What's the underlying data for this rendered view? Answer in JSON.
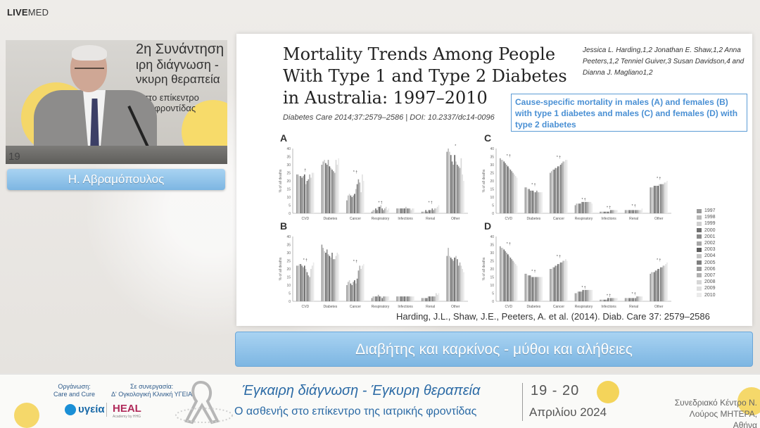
{
  "brand": {
    "live": "LIVE",
    "med": "MED"
  },
  "speaker": {
    "name": "Η. Αβραμόπουλος",
    "backdrop_lines": [
      "2η Συνάντηση",
      "ιρη διάγνωση -",
      "νκυρη θεραπεία",
      "ς στο επίκεντρο",
      "ικής φροντίδας"
    ],
    "corner_number": "19"
  },
  "slide": {
    "title": "Mortality Trends Among People With Type 1 and Type 2 Diabetes in Australia: 1997–2010",
    "citation": "Diabetes Care 2014;37:2579–2586 | DOI: 10.2337/dc14-0096",
    "authors": "Jessica L. Harding,1,2 Jonathan E. Shaw,1,2 Anna Peeters,1,2 Tenniel Guiver,3 Susan Davidson,4 and Dianna J. Magliano1,2",
    "callout": "Cause-specific mortality in males (A) and females (B) with type 1 diabetes and males (C) and females (D) with type 2 diabetes",
    "reference": "Harding, J.L., Shaw, J.E., Peeters, A. et al. (2014). Diab. Care 37: 2579–2586",
    "legend_years": [
      "1997",
      "1998",
      "1999",
      "2000",
      "2001",
      "2002",
      "2003",
      "2004",
      "2005",
      "2006",
      "2007",
      "2008",
      "2009",
      "2010"
    ],
    "legend_colors": [
      "#9a9a9a",
      "#b9b9b9",
      "#cfcfcf",
      "#6f6f6f",
      "#8a8a8a",
      "#a8a8a8",
      "#5d5d5d",
      "#c4c4c4",
      "#7e7e7e",
      "#999999",
      "#b1b1b1",
      "#d6d6d6",
      "#e0e0e0",
      "#ebebeb"
    ]
  },
  "chart_data": [
    {
      "type": "bar",
      "panel": "A",
      "ylabel": "% of all deaths",
      "ylim": [
        0,
        40
      ],
      "yticks": [
        "0",
        "5",
        "10",
        "15",
        "20",
        "25",
        "30",
        "35",
        "40"
      ],
      "categories": [
        "CVD",
        "Diabetes",
        "Cancer",
        "Respiratory",
        "Infections",
        "Renal",
        "Other"
      ],
      "markers": [
        "†",
        "",
        "* †",
        "* †",
        "",
        "* †",
        "*"
      ],
      "values": [
        [
          24,
          24,
          23,
          23,
          22,
          23,
          24,
          18,
          20,
          21,
          24,
          22,
          25,
          25
        ],
        [
          30,
          32,
          33,
          31,
          30,
          33,
          29,
          28,
          27,
          26,
          25,
          33,
          30,
          34
        ],
        [
          8,
          11,
          12,
          11,
          10,
          11,
          12,
          15,
          18,
          21,
          19,
          13,
          24,
          20
        ],
        [
          1,
          2,
          2,
          3,
          2,
          4,
          4,
          5,
          3,
          2,
          3,
          4,
          2,
          3
        ],
        [
          3,
          3,
          3,
          3,
          3,
          3,
          3,
          4,
          3,
          3,
          3,
          2,
          3,
          3
        ],
        [
          1,
          1,
          1,
          2,
          1,
          2,
          2,
          2,
          3,
          2,
          3,
          3,
          4,
          5
        ],
        [
          38,
          40,
          38,
          36,
          32,
          30,
          36,
          32,
          30,
          29,
          28,
          34,
          24,
          20
        ]
      ]
    },
    {
      "type": "bar",
      "panel": "B",
      "ylabel": "% of all deaths",
      "ylim": [
        0,
        40
      ],
      "yticks": [
        "0",
        "5",
        "10",
        "15",
        "20",
        "25",
        "30",
        "35",
        "40"
      ],
      "categories": [
        "CVD",
        "Diabetes",
        "Cancer",
        "Respiratory",
        "Infections",
        "Renal",
        "Other"
      ],
      "markers": [
        "* †",
        "",
        "* †",
        "",
        "",
        "",
        ""
      ],
      "values": [
        [
          22,
          22,
          23,
          23,
          22,
          21,
          22,
          20,
          18,
          16,
          15,
          20,
          22,
          24
        ],
        [
          35,
          33,
          31,
          30,
          32,
          29,
          28,
          27,
          30,
          26,
          26,
          28,
          30,
          29
        ],
        [
          10,
          12,
          13,
          11,
          10,
          12,
          13,
          11,
          14,
          19,
          22,
          20,
          22,
          23
        ],
        [
          2,
          3,
          3,
          3,
          3,
          4,
          3,
          3,
          2,
          3,
          3,
          3,
          3,
          3
        ],
        [
          3,
          3,
          3,
          3,
          3,
          3,
          3,
          3,
          3,
          3,
          3,
          3,
          3,
          3
        ],
        [
          2,
          2,
          2,
          2,
          2,
          3,
          3,
          3,
          3,
          3,
          3,
          5,
          4,
          5
        ],
        [
          28,
          33,
          28,
          27,
          26,
          25,
          27,
          28,
          26,
          22,
          24,
          22,
          20,
          18
        ]
      ]
    },
    {
      "type": "bar",
      "panel": "C",
      "ylabel": "% of all deaths",
      "ylim": [
        0,
        40
      ],
      "yticks": [
        "0",
        "5",
        "10",
        "15",
        "20",
        "25",
        "30",
        "35",
        "40"
      ],
      "categories": [
        "CVD",
        "Diabetes",
        "Cancer",
        "Respiratory",
        "Infections",
        "Renal",
        "Other"
      ],
      "markers": [
        "* †",
        "* †",
        "* †",
        "* †",
        "* †",
        "* †",
        "* †"
      ],
      "values": [
        [
          34,
          33,
          33,
          32,
          31,
          30,
          29,
          28,
          27,
          26,
          25,
          24,
          23,
          22
        ],
        [
          16,
          16,
          15,
          15,
          14,
          14,
          14,
          13,
          13,
          14,
          13,
          13,
          13,
          13
        ],
        [
          25,
          26,
          27,
          27,
          28,
          28,
          29,
          29,
          30,
          31,
          32,
          32,
          33,
          33
        ],
        [
          5,
          6,
          6,
          6,
          6,
          7,
          7,
          7,
          7,
          7,
          7,
          7,
          7,
          6
        ],
        [
          1,
          1,
          1,
          1,
          1,
          1,
          1,
          1,
          2,
          2,
          2,
          2,
          2,
          2
        ],
        [
          2,
          2,
          2,
          2,
          2,
          2,
          2,
          2,
          2,
          2,
          2,
          2,
          2,
          3
        ],
        [
          16,
          16,
          16,
          17,
          17,
          17,
          17,
          18,
          18,
          18,
          18,
          19,
          19,
          20
        ]
      ]
    },
    {
      "type": "bar",
      "panel": "D",
      "ylabel": "% of all deaths",
      "ylim": [
        0,
        40
      ],
      "yticks": [
        "0",
        "5",
        "10",
        "15",
        "20",
        "25",
        "30",
        "35",
        "40"
      ],
      "categories": [
        "CVD",
        "Diabetes",
        "Cancer",
        "Respiratory",
        "Infections",
        "Renal",
        "Other"
      ],
      "markers": [
        "* †",
        "* †",
        "* †",
        "* †",
        "* †",
        "* †",
        "* †"
      ],
      "values": [
        [
          34,
          33,
          33,
          32,
          31,
          30,
          29,
          28,
          27,
          26,
          25,
          24,
          23,
          22
        ],
        [
          17,
          17,
          16,
          16,
          16,
          15,
          15,
          15,
          15,
          15,
          15,
          15,
          15,
          15
        ],
        [
          20,
          20,
          21,
          21,
          22,
          22,
          23,
          23,
          24,
          24,
          25,
          25,
          26,
          25
        ],
        [
          5,
          5,
          6,
          6,
          6,
          6,
          7,
          7,
          7,
          7,
          7,
          7,
          7,
          7
        ],
        [
          1,
          1,
          1,
          1,
          1,
          1,
          2,
          2,
          2,
          2,
          2,
          2,
          2,
          2
        ],
        [
          2,
          2,
          2,
          2,
          2,
          2,
          2,
          2,
          2,
          3,
          3,
          3,
          3,
          3
        ],
        [
          17,
          18,
          18,
          18,
          19,
          19,
          20,
          20,
          21,
          21,
          22,
          22,
          23,
          24
        ]
      ]
    }
  ],
  "subtitle": "Διαβήτης και καρκίνος - μύθοι και αλήθειες",
  "footer": {
    "org_label": "Οργάνωση:\nCare and Cure",
    "collab_label": "Σε συνεργασία:\nΔ' Ογκολογική Κλινική ΥΓΕΙΑ",
    "ugeia": "υγεία",
    "heal": "HEAL",
    "heal_sub": "Academy by HHG",
    "title1": "Έγκαιρη διάγνωση - Έγκυρη θεραπεία",
    "title2": "Ο ασθενής στο επίκεντρο της ιατρικής φροντίδας",
    "date1": "19 - 20",
    "date2": "Απριλίου 2024",
    "venue": "Συνεδριακό Κέντρο Ν. Λούρος ΜΗΤΕΡΑ, Αθήνα"
  }
}
